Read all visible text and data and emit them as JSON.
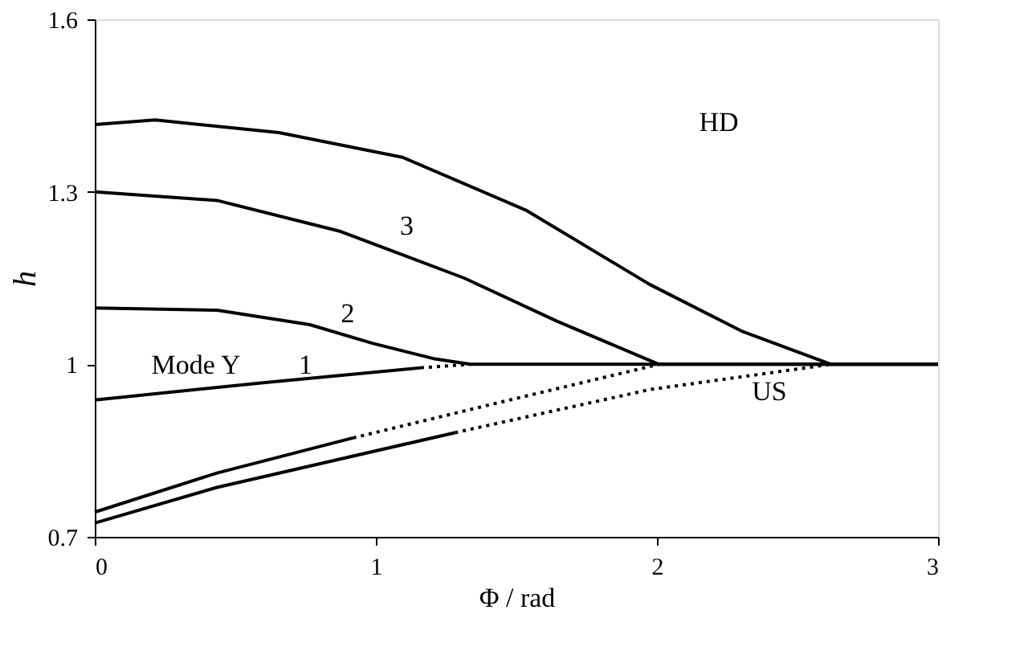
{
  "chart_data": {
    "type": "line",
    "xlabel": "Φ / rad",
    "ylabel": "h",
    "xlim": [
      0,
      3
    ],
    "ylim": [
      0.7,
      1.6
    ],
    "xticks": [
      0,
      1,
      2,
      3
    ],
    "yticks": [
      0.7,
      1,
      1.3,
      1.6
    ],
    "grid": false,
    "marker": "none",
    "series": [
      {
        "color": "#000000",
        "line_style": "solid",
        "x": [
          0,
          0.215,
          0.655,
          1.095,
          1.534,
          1.974,
          2.3,
          2.62,
          3
        ],
        "values": [
          1.417,
          1.425,
          1.403,
          1.36,
          1.268,
          1.139,
          1.058,
          1.0,
          1.0
        ]
      },
      {
        "color": "#000000",
        "line_style": "solid",
        "x": [
          0,
          0.435,
          0.875,
          1.314,
          1.644,
          2.007,
          3
        ],
        "values": [
          1.3,
          1.285,
          1.231,
          1.15,
          1.075,
          1.0,
          1.0
        ]
      },
      {
        "color": "#000000",
        "line_style": "solid",
        "x": [
          0,
          0.435,
          0.765,
          0.985,
          1.204,
          1.336,
          3
        ],
        "values": [
          1.098,
          1.094,
          1.069,
          1.037,
          1.01,
          1.0,
          1.0
        ]
      },
      {
        "color": "#000000",
        "line_style": "solid",
        "x": [
          0,
          0.6,
          1.16
        ],
        "values": [
          0.938,
          0.968,
          0.994
        ]
      },
      {
        "color": "#000000",
        "line_style": "dotted",
        "x": [
          1.16,
          1.336
        ],
        "values": [
          0.994,
          1.0
        ]
      },
      {
        "color": "#000000",
        "line_style": "solid",
        "x": [
          0,
          0.435,
          0.919
        ],
        "values": [
          0.743,
          0.811,
          0.872
        ]
      },
      {
        "color": "#000000",
        "line_style": "dotted",
        "x": [
          0.919,
          1.468,
          2.007
        ],
        "values": [
          0.872,
          0.937,
          1.0
        ]
      },
      {
        "color": "#000000",
        "line_style": "solid",
        "x": [
          0,
          0.435,
          1.281
        ],
        "values": [
          0.724,
          0.786,
          0.881
        ]
      },
      {
        "color": "#000000",
        "line_style": "dotted",
        "x": [
          1.281,
          1.974,
          2.62
        ],
        "values": [
          0.881,
          0.956,
          1.0
        ]
      }
    ],
    "annotations": [
      "HD",
      "US",
      "Mode Y",
      "1",
      "2",
      "3"
    ]
  }
}
